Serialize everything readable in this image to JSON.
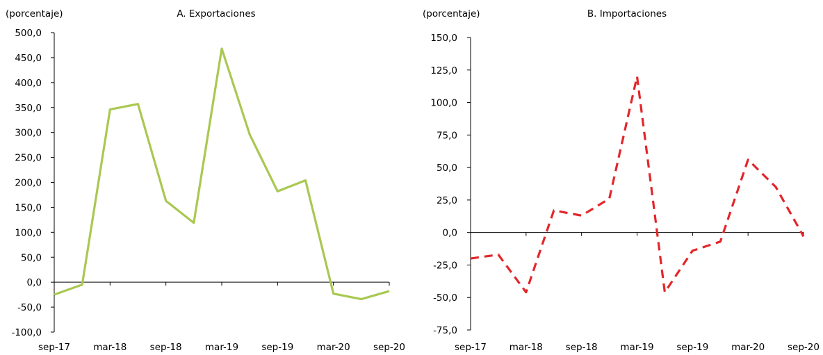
{
  "chart_data": [
    {
      "type": "line",
      "title": "A. Exportaciones",
      "ylabel": "(porcentaje)",
      "xlabel": "",
      "ylim": [
        -100,
        500
      ],
      "yticks": [
        "500,0",
        "450,0",
        "400,0",
        "350,0",
        "300,0",
        "250,0",
        "200,0",
        "150,0",
        "100,0",
        "50,0",
        "0,0",
        "-50,0",
        "-100,0"
      ],
      "xticks": [
        "sep-17",
        "mar-18",
        "sep-18",
        "mar-19",
        "sep-19",
        "mar-20",
        "sep-20"
      ],
      "grid": false,
      "color": "#a9c852",
      "dashed": false,
      "x": [
        "sep-17",
        "dic-17",
        "mar-18",
        "jun-18",
        "sep-18",
        "dic-18",
        "mar-19",
        "jun-19",
        "sep-19",
        "dic-19",
        "mar-20",
        "jun-20",
        "sep-20"
      ],
      "values": [
        -25,
        -5,
        346,
        357,
        163,
        119,
        468,
        296,
        182,
        204,
        -23,
        -34,
        -18
      ]
    },
    {
      "type": "line",
      "title": "B. Importaciones",
      "ylabel": "(porcentaje)",
      "xlabel": "",
      "ylim": [
        -75,
        150
      ],
      "yticks": [
        "150,0",
        "125,0",
        "100,0",
        "75,0",
        "50,0",
        "25,0",
        "0,0",
        "-25,0",
        "-50,0",
        "-75,0"
      ],
      "xticks": [
        "sep-17",
        "mar-18",
        "sep-18",
        "mar-19",
        "sep-19",
        "mar-20",
        "sep-20"
      ],
      "grid": false,
      "color": "#e3262a",
      "dashed": true,
      "x": [
        "sep-17",
        "dic-17",
        "mar-18",
        "jun-18",
        "sep-18",
        "dic-18",
        "mar-19",
        "jun-19",
        "sep-19",
        "dic-19",
        "mar-20",
        "jun-20",
        "sep-20"
      ],
      "values": [
        -20,
        -17,
        -46,
        17,
        13,
        26,
        120,
        -46,
        -14,
        -7,
        56,
        35,
        -3
      ]
    }
  ]
}
